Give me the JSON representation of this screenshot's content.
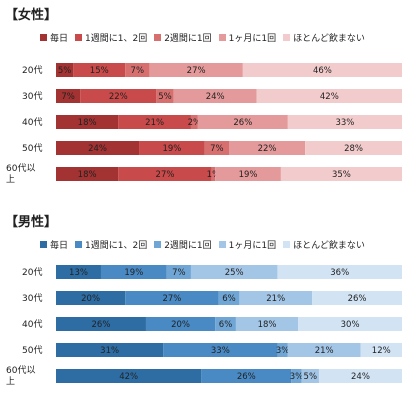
{
  "chart_data": [
    {
      "type": "bar",
      "stacked": "horizontal-percent",
      "title": "【女性】",
      "categories": [
        "20代",
        "30代",
        "40代",
        "50代",
        "60代以上"
      ],
      "category_label_lines": [
        [
          "20代"
        ],
        [
          "30代"
        ],
        [
          "40代"
        ],
        [
          "50代"
        ],
        [
          "60代以",
          "上"
        ]
      ],
      "series": [
        {
          "name": "毎日",
          "color": "#a33232",
          "values": [
            5,
            7,
            18,
            24,
            18
          ]
        },
        {
          "name": "1週間に1、2回",
          "color": "#c94a4a",
          "values": [
            15,
            22,
            21,
            19,
            27
          ]
        },
        {
          "name": "2週間に1回",
          "color": "#d86f6f",
          "values": [
            7,
            5,
            2,
            7,
            1
          ]
        },
        {
          "name": "1ヶ月に1回",
          "color": "#e49a9a",
          "values": [
            27,
            24,
            26,
            22,
            19
          ]
        },
        {
          "name": "ほとんど飲まない",
          "color": "#f2cccc",
          "values": [
            46,
            42,
            33,
            28,
            35
          ]
        }
      ],
      "value_labels": [
        [
          "5%",
          "15%",
          "7%",
          "27%",
          "46%"
        ],
        [
          "7%",
          "22%",
          "5%",
          "24%",
          "42%"
        ],
        [
          "18%",
          "21%",
          "2%",
          "26%",
          "33%"
        ],
        [
          "24%",
          "19%",
          "7%",
          "22%",
          "28%"
        ],
        [
          "18%",
          "27%",
          "1%",
          "19%",
          "35%"
        ]
      ],
      "legend_position": "top",
      "grid": false
    },
    {
      "type": "bar",
      "stacked": "horizontal-percent",
      "title": "【男性】",
      "categories": [
        "20代",
        "30代",
        "40代",
        "50代",
        "60代以上"
      ],
      "category_label_lines": [
        [
          "20代"
        ],
        [
          "30代"
        ],
        [
          "40代"
        ],
        [
          "50代"
        ],
        [
          "60代以",
          "上"
        ]
      ],
      "series": [
        {
          "name": "毎日",
          "color": "#2e6da4",
          "values": [
            13,
            20,
            26,
            31,
            42
          ]
        },
        {
          "name": "1週間に1、2回",
          "color": "#4a8ac4",
          "values": [
            19,
            27,
            20,
            33,
            26
          ]
        },
        {
          "name": "2週間に1回",
          "color": "#6fa6d6",
          "values": [
            7,
            6,
            6,
            3,
            3
          ]
        },
        {
          "name": "1ヶ月に1回",
          "color": "#a4c6e6",
          "values": [
            25,
            21,
            18,
            21,
            5
          ]
        },
        {
          "name": "ほとんど飲まない",
          "color": "#d2e3f3",
          "values": [
            36,
            26,
            30,
            12,
            24
          ]
        }
      ],
      "value_labels": [
        [
          "13%",
          "19%",
          "7%",
          "25%",
          "36%"
        ],
        [
          "20%",
          "27%",
          "6%",
          "21%",
          "26%"
        ],
        [
          "26%",
          "20%",
          "6%",
          "18%",
          "30%"
        ],
        [
          "31%",
          "33%",
          "3%",
          "21%",
          "12%"
        ],
        [
          "42%",
          "26%",
          "3%",
          "5%",
          "24%"
        ]
      ],
      "legend_position": "top",
      "grid": false
    }
  ]
}
